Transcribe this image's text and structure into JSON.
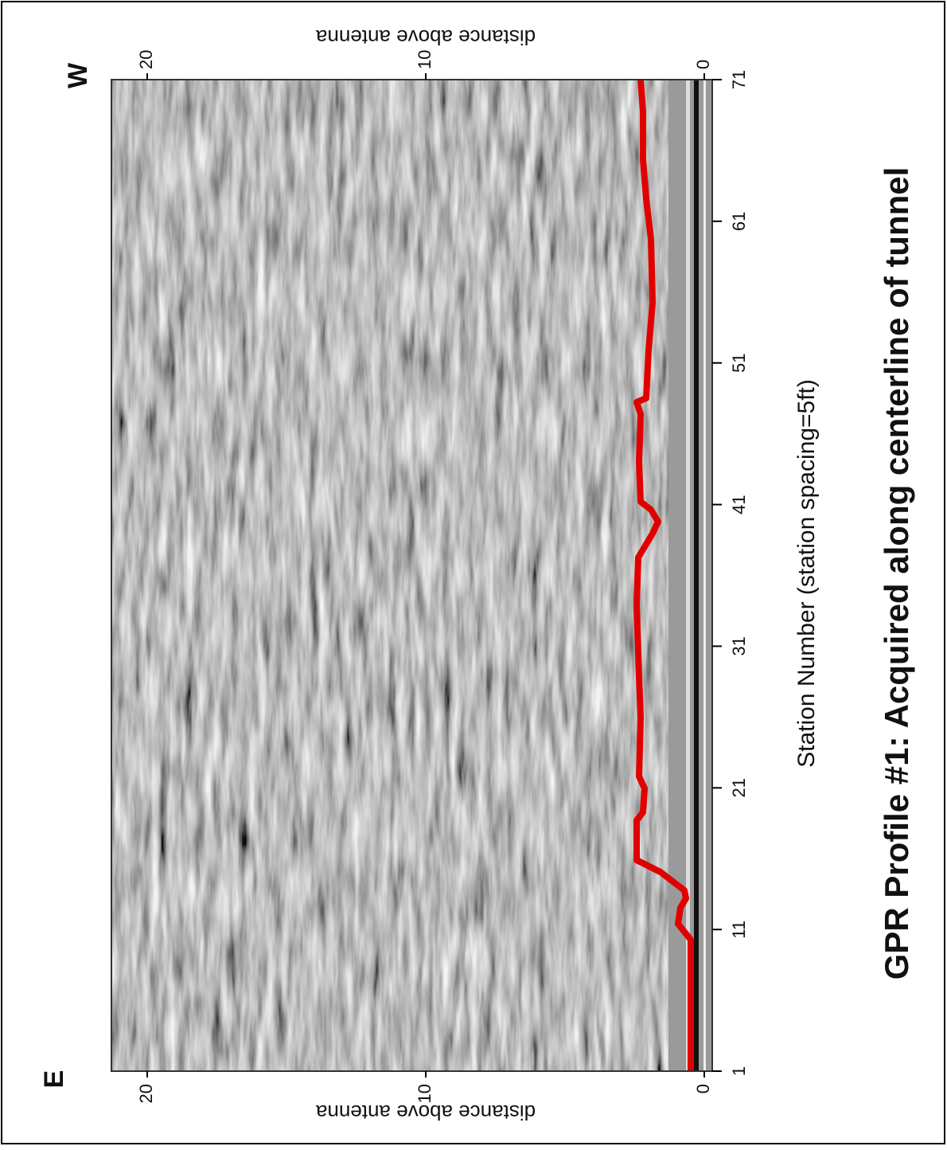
{
  "labels": {
    "east": "E",
    "west": "W",
    "left_axis_title": "distance above antenna",
    "right_axis_title": "distance above antenna",
    "x_axis_title": "Station Number (station spacing=5ft)",
    "title": "GPR Profile #1: Acquired along centerline of tunnel"
  },
  "distance_ticks": [
    0,
    10,
    20
  ],
  "station_ticks": [
    1,
    11,
    21,
    31,
    41,
    51,
    61,
    71
  ]
}
